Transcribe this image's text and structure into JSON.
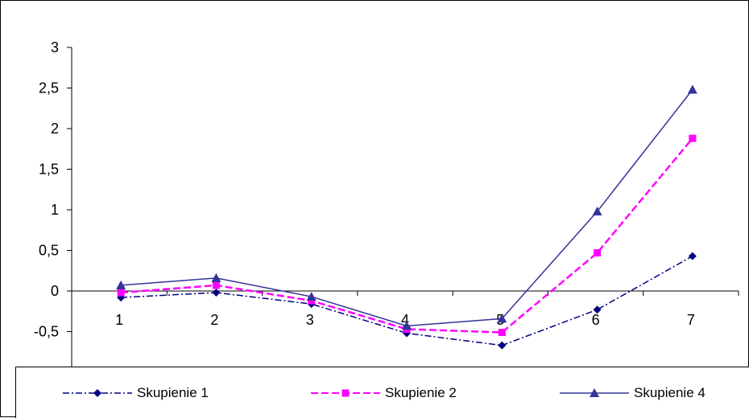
{
  "chart_data": {
    "type": "line",
    "title": "",
    "xlabel": "",
    "ylabel": "",
    "categories": [
      "1",
      "2",
      "3",
      "4",
      "5",
      "6",
      "7"
    ],
    "ylim": [
      -0.5,
      3
    ],
    "yticks": [
      "3",
      "2,5",
      "2",
      "1,5",
      "1",
      "0,5",
      "0",
      "-0,5"
    ],
    "ytick_values": [
      3,
      2.5,
      2,
      1.5,
      1,
      0.5,
      0,
      -0.5
    ],
    "grid": false,
    "legend_position": "bottom",
    "series": [
      {
        "name": "Skupienie 1",
        "values": [
          -0.08,
          -0.02,
          -0.16,
          -0.52,
          -0.67,
          -0.23,
          0.43
        ],
        "color": "#000080",
        "marker": "diamond",
        "dash": "dashdot"
      },
      {
        "name": "Skupienie 2",
        "values": [
          -0.02,
          0.07,
          -0.12,
          -0.47,
          -0.51,
          0.47,
          1.88
        ],
        "color": "#FF00FF",
        "marker": "square",
        "dash": "dashed"
      },
      {
        "name": "Skupienie 4",
        "values": [
          0.07,
          0.16,
          -0.07,
          -0.43,
          -0.34,
          0.98,
          2.48
        ],
        "color": "#333399",
        "marker": "triangle",
        "dash": "solid"
      }
    ]
  }
}
